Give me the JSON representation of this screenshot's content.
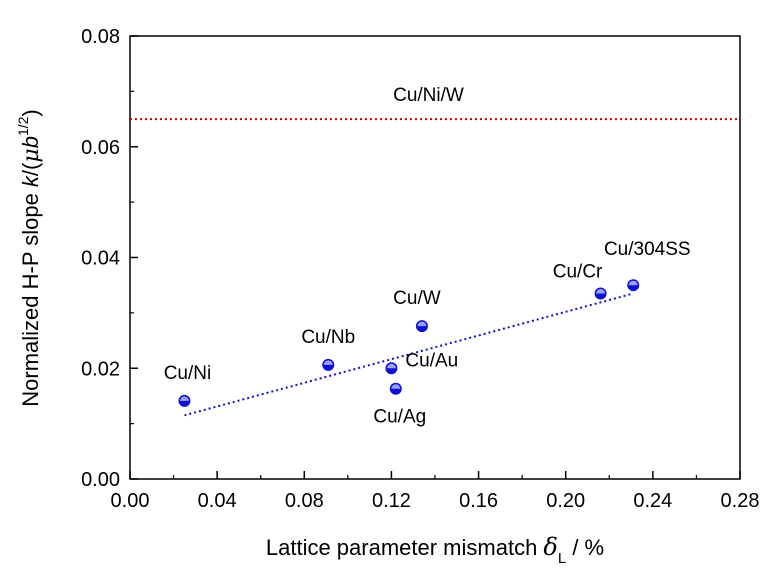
{
  "chart_data": {
    "type": "scatter",
    "xlabel": {
      "main": "Lattice parameter mismatch ",
      "symbol": "δ",
      "subscript": "L",
      "suffix": " / %"
    },
    "ylabel": {
      "main": "Normalized H-P slope ",
      "k": "k",
      "open": "/(",
      "mu": "μ",
      "b": "b",
      "sup": "1/2",
      "close": ")"
    },
    "xlim": [
      0.0,
      0.28
    ],
    "ylim": [
      0.0,
      0.08
    ],
    "xticks": [
      "0.00",
      "0.04",
      "0.08",
      "0.12",
      "0.16",
      "0.20",
      "0.24",
      "0.28"
    ],
    "yticks": [
      "0.00",
      "0.02",
      "0.04",
      "0.06",
      "0.08"
    ],
    "grid": false,
    "legend": "none",
    "point_color": "#1010d0",
    "series": [
      {
        "points": [
          {
            "label": "Cu/Ni",
            "x": 0.025,
            "y": 0.0141
          },
          {
            "label": "Cu/Nb",
            "x": 0.091,
            "y": 0.0206
          },
          {
            "label": "Cu/Au",
            "x": 0.12,
            "y": 0.02
          },
          {
            "label": "Cu/Ag",
            "x": 0.122,
            "y": 0.0163
          },
          {
            "label": "Cu/W",
            "x": 0.134,
            "y": 0.0276
          },
          {
            "label": "Cu/Cr",
            "x": 0.216,
            "y": 0.0335
          },
          {
            "label": "Cu/304SS",
            "x": 0.231,
            "y": 0.035
          }
        ]
      }
    ],
    "trend_line": {
      "style": "dotted",
      "color": "#1010d0",
      "x": [
        0.025,
        0.231
      ],
      "y": [
        0.0115,
        0.0335
      ]
    },
    "reference_line": {
      "label": "Cu/Ni/W",
      "y": 0.065,
      "style": "dotted",
      "color": "#cc0000"
    }
  }
}
